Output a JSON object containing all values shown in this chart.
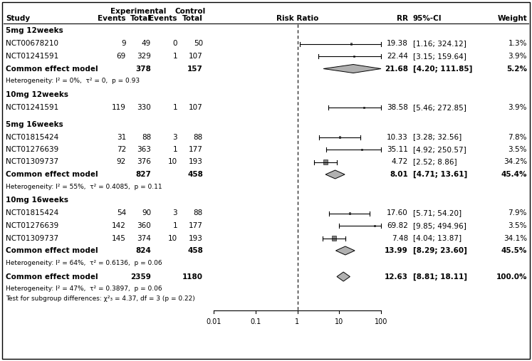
{
  "groups": [
    {
      "label": "5mg 12weeks",
      "studies": [
        {
          "name": "NCT00678210",
          "exp_events": 9,
          "exp_total": 49,
          "ctrl_events": 0,
          "ctrl_total": 50,
          "rr": 19.38,
          "ci_lo": 1.16,
          "ci_hi": 324.12,
          "weight": 1.3
        },
        {
          "name": "NCT01241591",
          "exp_events": 69,
          "exp_total": 329,
          "ctrl_events": 1,
          "ctrl_total": 107,
          "rr": 22.44,
          "ci_lo": 3.15,
          "ci_hi": 159.64,
          "weight": 3.9
        }
      ],
      "common": {
        "exp_total": 378,
        "ctrl_total": 157,
        "rr": 21.68,
        "ci_lo": 4.2,
        "ci_hi": 111.85,
        "weight": 5.2
      },
      "heterogeneity": "Heterogeneity: I² = 0%,  τ² = 0,  p = 0.93"
    },
    {
      "label": "10mg 12weeks",
      "studies": [
        {
          "name": "NCT01241591",
          "exp_events": 119,
          "exp_total": 330,
          "ctrl_events": 1,
          "ctrl_total": 107,
          "rr": 38.58,
          "ci_lo": 5.46,
          "ci_hi": 272.85,
          "weight": 3.9
        }
      ],
      "common": null,
      "heterogeneity": null
    },
    {
      "label": "5mg 16weeks",
      "studies": [
        {
          "name": "NCT01815424",
          "exp_events": 31,
          "exp_total": 88,
          "ctrl_events": 3,
          "ctrl_total": 88,
          "rr": 10.33,
          "ci_lo": 3.28,
          "ci_hi": 32.56,
          "weight": 7.8
        },
        {
          "name": "NCT01276639",
          "exp_events": 72,
          "exp_total": 363,
          "ctrl_events": 1,
          "ctrl_total": 177,
          "rr": 35.11,
          "ci_lo": 4.92,
          "ci_hi": 250.57,
          "weight": 3.5
        },
        {
          "name": "NCT01309737",
          "exp_events": 92,
          "exp_total": 376,
          "ctrl_events": 10,
          "ctrl_total": 193,
          "rr": 4.72,
          "ci_lo": 2.52,
          "ci_hi": 8.86,
          "weight": 34.2
        }
      ],
      "common": {
        "exp_total": 827,
        "ctrl_total": 458,
        "rr": 8.01,
        "ci_lo": 4.71,
        "ci_hi": 13.61,
        "weight": 45.4
      },
      "heterogeneity": "Heterogeneity: I² = 55%,  τ² = 0.4085,  p = 0.11"
    },
    {
      "label": "10mg 16weeks",
      "studies": [
        {
          "name": "NCT01815424",
          "exp_events": 54,
          "exp_total": 90,
          "ctrl_events": 3,
          "ctrl_total": 88,
          "rr": 17.6,
          "ci_lo": 5.71,
          "ci_hi": 54.2,
          "weight": 7.9
        },
        {
          "name": "NCT01276639",
          "exp_events": 142,
          "exp_total": 360,
          "ctrl_events": 1,
          "ctrl_total": 177,
          "rr": 69.82,
          "ci_lo": 9.85,
          "ci_hi": 494.96,
          "weight": 3.5
        },
        {
          "name": "NCT01309737",
          "exp_events": 145,
          "exp_total": 374,
          "ctrl_events": 10,
          "ctrl_total": 193,
          "rr": 7.48,
          "ci_lo": 4.04,
          "ci_hi": 13.87,
          "weight": 34.1
        }
      ],
      "common": {
        "exp_total": 824,
        "ctrl_total": 458,
        "rr": 13.99,
        "ci_lo": 8.29,
        "ci_hi": 23.6,
        "weight": 45.5
      },
      "heterogeneity": "Heterogeneity: I² = 64%,  τ² = 0.6136,  p = 0.06"
    }
  ],
  "overall": {
    "exp_total": 2359,
    "ctrl_total": 1180,
    "rr": 12.63,
    "ci_lo": 8.81,
    "ci_hi": 18.11,
    "weight": 100.0
  },
  "overall_heterogeneity": "Heterogeneity: I² = 47%,  τ² = 0.3897,  p = 0.06",
  "subgroup_test": "Test for subgroup differences: χ²₃ = 4.37, df = 3 (p = 0.22)",
  "axis_ticks": [
    0.01,
    0.1,
    1,
    10,
    100
  ],
  "axis_labels": [
    "0.01",
    "0.1",
    "1",
    "10",
    "100"
  ],
  "diamond_color": "#b0b0b0",
  "square_color": "#808080",
  "bg_color": "#ffffff"
}
